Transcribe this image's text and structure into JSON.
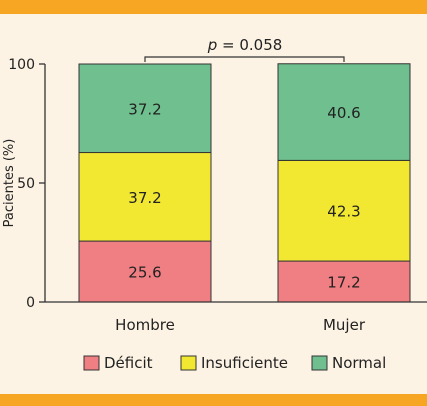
{
  "colors": {
    "background": "#fdf3e4",
    "stripe": "#f6a623",
    "axis": "#333333"
  },
  "chart_data": {
    "type": "bar",
    "stacked": true,
    "categories": [
      "Hombre",
      "Mujer"
    ],
    "series": [
      {
        "name": "Déficit",
        "color": "#f07f83",
        "values": [
          25.6,
          17.2
        ]
      },
      {
        "name": "Insuficiente",
        "color": "#f2e832",
        "values": [
          37.2,
          42.3
        ]
      },
      {
        "name": "Normal",
        "color": "#6fbf8f",
        "values": [
          37.2,
          40.6
        ]
      }
    ],
    "ylabel": "Pacientes (%)",
    "ylim": [
      0,
      100
    ],
    "yticks": [
      0,
      50,
      100
    ],
    "annotation": {
      "italic": "p",
      "text": " = 0.058"
    },
    "legend_position": "bottom"
  }
}
